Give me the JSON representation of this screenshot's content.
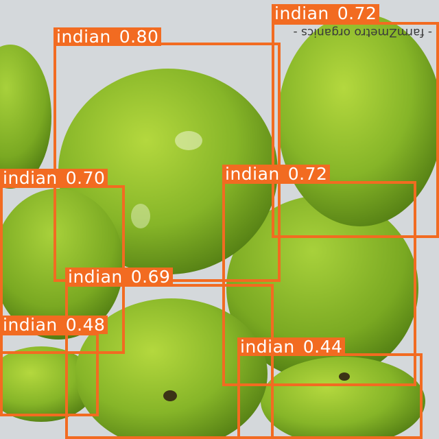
{
  "image": {
    "watermark": "- farmZmetro organics -"
  },
  "detections": [
    {
      "class": "indian",
      "score": "0.80"
    },
    {
      "class": "indian",
      "score": "0.72"
    },
    {
      "class": "indian",
      "score": "0.70"
    },
    {
      "class": "indian",
      "score": "0.72"
    },
    {
      "class": "indian",
      "score": "0.69"
    },
    {
      "class": "indian",
      "score": "0.48"
    },
    {
      "class": "indian",
      "score": "0.44"
    }
  ],
  "colors": {
    "box": "#f26b21",
    "label_text": "#ffffff",
    "mango_light": "#a9cf3a",
    "mango_dark": "#4f7d12"
  }
}
